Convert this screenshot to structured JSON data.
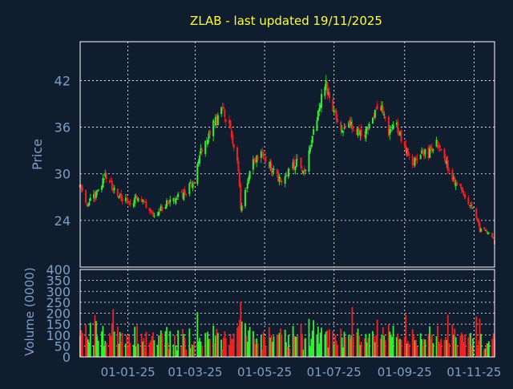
{
  "colors": {
    "background": "#0f1d2e",
    "frame": "#ffffff",
    "grid": "#ffffff",
    "title": "#ffff33",
    "label": "#7f9fc4",
    "up": "#33ee33",
    "down": "#ee2222"
  },
  "chart_data": [
    {
      "type": "candlestick",
      "title": "ZLAB - last updated 19/11/2025",
      "ylabel": "Price",
      "ylim": [
        18.0,
        47.0
      ],
      "yticks": [
        24,
        30,
        36,
        42
      ],
      "xlim": [
        "2024-11-20",
        "2025-11-19"
      ],
      "xtick_dates": [
        "2025-01-01",
        "2025-03-01",
        "2025-05-01",
        "2025-07-01",
        "2025-09-01",
        "2025-11-01"
      ],
      "xtick_labels": [
        "01-01-25",
        "01-03-25",
        "01-05-25",
        "01-07-25",
        "01-09-25",
        "01-11-25"
      ],
      "grid": true,
      "close_path": [
        [
          "2024-11-20",
          28.5
        ],
        [
          "2024-11-25",
          26.0
        ],
        [
          "2024-12-01",
          26.8
        ],
        [
          "2024-12-08",
          28.2
        ],
        [
          "2024-12-12",
          29.8
        ],
        [
          "2024-12-18",
          28.4
        ],
        [
          "2024-12-25",
          26.8
        ],
        [
          "2025-01-03",
          26.4
        ],
        [
          "2025-01-10",
          26.9
        ],
        [
          "2025-01-18",
          25.8
        ],
        [
          "2025-01-25",
          24.5
        ],
        [
          "2025-02-01",
          25.8
        ],
        [
          "2025-02-10",
          26.8
        ],
        [
          "2025-02-18",
          27.2
        ],
        [
          "2025-02-28",
          29.2
        ],
        [
          "2025-03-05",
          32.8
        ],
        [
          "2025-03-12",
          34.8
        ],
        [
          "2025-03-18",
          36.6
        ],
        [
          "2025-03-25",
          38.2
        ],
        [
          "2025-03-31",
          36.5
        ],
        [
          "2025-04-04",
          33.5
        ],
        [
          "2025-04-08",
          30.5
        ],
        [
          "2025-04-10",
          25.5
        ],
        [
          "2025-04-15",
          28.5
        ],
        [
          "2025-04-22",
          32.0
        ],
        [
          "2025-04-30",
          32.5
        ],
        [
          "2025-05-08",
          30.5
        ],
        [
          "2025-05-15",
          29.0
        ],
        [
          "2025-05-22",
          30.5
        ],
        [
          "2025-05-30",
          31.5
        ],
        [
          "2025-06-05",
          30.0
        ],
        [
          "2025-06-12",
          34.5
        ],
        [
          "2025-06-18",
          39.0
        ],
        [
          "2025-06-24",
          41.5
        ],
        [
          "2025-06-30",
          38.0
        ],
        [
          "2025-07-07",
          35.8
        ],
        [
          "2025-07-14",
          36.5
        ],
        [
          "2025-07-21",
          35.5
        ],
        [
          "2025-07-28",
          35.0
        ],
        [
          "2025-08-04",
          36.8
        ],
        [
          "2025-08-10",
          39.2
        ],
        [
          "2025-08-18",
          35.5
        ],
        [
          "2025-08-25",
          36.0
        ],
        [
          "2025-09-01",
          33.5
        ],
        [
          "2025-09-08",
          31.5
        ],
        [
          "2025-09-15",
          32.8
        ],
        [
          "2025-09-22",
          32.5
        ],
        [
          "2025-09-29",
          34.2
        ],
        [
          "2025-10-06",
          31.8
        ],
        [
          "2025-10-13",
          29.5
        ],
        [
          "2025-10-20",
          28.0
        ],
        [
          "2025-10-27",
          26.5
        ],
        [
          "2025-11-01",
          25.5
        ],
        [
          "2025-11-06",
          22.8
        ],
        [
          "2025-11-12",
          22.4
        ],
        [
          "2025-11-19",
          21.2
        ]
      ]
    },
    {
      "type": "bar",
      "ylabel": "Volume (0000)",
      "ylim": [
        0,
        400
      ],
      "yticks": [
        0,
        50,
        100,
        150,
        200,
        250,
        300,
        350,
        400
      ],
      "grid": true
    }
  ]
}
